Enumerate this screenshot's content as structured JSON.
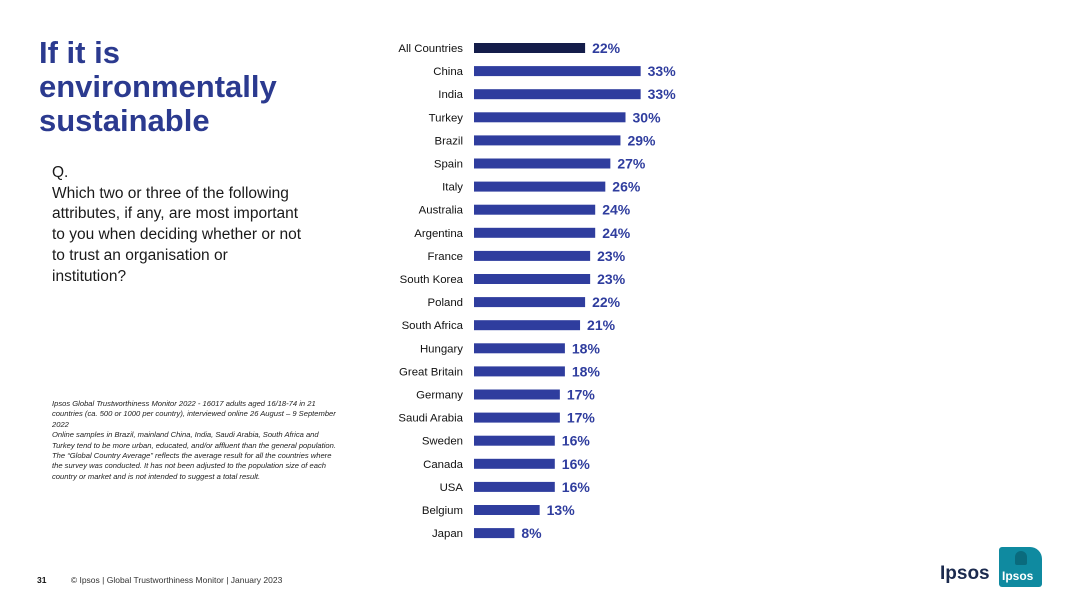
{
  "title": "If it is environmentally sustainable",
  "question": {
    "q_label": "Q.",
    "text": "Which two or three of the following attributes, if any, are most important to you when deciding whether or not to trust an organisation or institution?"
  },
  "notes": [
    "Ipsos Global Trustworthiness Monitor 2022 - 16017 adults aged 16/18-74 in 21 countries (ca. 500 or 1000 per country), interviewed online 26 August – 9 September 2022",
    "Online samples in Brazil, mainland China, India, Saudi Arabia, South Africa and Turkey tend to be more urban, educated, and/or affluent than the general population.",
    "The “Global Country Average” reflects the average result for all the countries where the survey was conducted. It has not been adjusted to the population size of each country or market and is not intended to suggest a total result."
  ],
  "footer": {
    "page_number": "31",
    "text": "© Ipsos | Global Trustworthiness Monitor | January 2023"
  },
  "brand": {
    "name": "Ipsos",
    "logo_text": "Ipsos",
    "logo_icon": "ipsos-logo-icon"
  },
  "colors": {
    "title": "#2b3a8f",
    "bar": "#2f3d9e",
    "bar_highlight": "#141d4a",
    "value_label": "#2f3d9e",
    "logo": "#0f8aa0"
  },
  "chart_data": {
    "type": "bar",
    "orientation": "horizontal",
    "categories": [
      "All Countries",
      "China",
      "India",
      "Turkey",
      "Brazil",
      "Spain",
      "Italy",
      "Australia",
      "Argentina",
      "France",
      "South Korea",
      "Poland",
      "South Africa",
      "Hungary",
      "Great Britain",
      "Germany",
      "Saudi Arabia",
      "Sweden",
      "Canada",
      "USA",
      "Belgium",
      "Japan"
    ],
    "values": [
      22,
      33,
      33,
      30,
      29,
      27,
      26,
      24,
      24,
      23,
      23,
      22,
      21,
      18,
      18,
      17,
      17,
      16,
      16,
      16,
      13,
      8
    ],
    "value_labels": [
      "22%",
      "33%",
      "33%",
      "30%",
      "29%",
      "27%",
      "26%",
      "24%",
      "24%",
      "23%",
      "23%",
      "22%",
      "21%",
      "18%",
      "18%",
      "17%",
      "17%",
      "16%",
      "16%",
      "16%",
      "13%",
      "8%"
    ],
    "highlight_category": "All Countries",
    "unit": "%",
    "xlim": [
      0,
      33
    ],
    "grid": false,
    "legend": "none"
  }
}
